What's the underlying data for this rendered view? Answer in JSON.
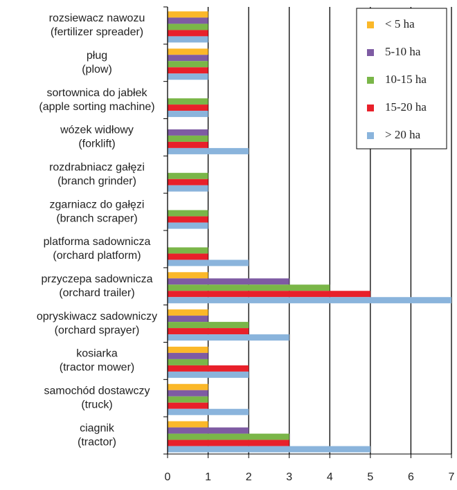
{
  "chart_data": {
    "type": "barh",
    "categories": [
      [
        "rozsiewacz nawozu",
        "(fertilizer spreader)"
      ],
      [
        "pług",
        "(plow)"
      ],
      [
        "sortownica do jabłek",
        "(apple sorting machine)"
      ],
      [
        "wózek widłowy",
        "(forklift)"
      ],
      [
        "rozdrabniacz gałęzi",
        "(branch grinder)"
      ],
      [
        "zgarniacz do gałęzi",
        "(branch scraper)"
      ],
      [
        "platforma sadownicza",
        "(orchard platform)"
      ],
      [
        "przyczepa sadownicza",
        "(orchard trailer)"
      ],
      [
        "opryskiwacz sadowniczy",
        "(orchard sprayer)"
      ],
      [
        "kosiarka",
        "(tractor mower)"
      ],
      [
        "samochód dostawczy",
        "(truck)"
      ],
      [
        "ciagnik",
        "(tractor)"
      ]
    ],
    "series": [
      {
        "name": "< 5 ha",
        "color": "#fbb829",
        "values": [
          1,
          1,
          0,
          0,
          0,
          0,
          0,
          1,
          1,
          1,
          1,
          1
        ]
      },
      {
        "name": "5-10 ha",
        "color": "#7e5ba3",
        "values": [
          1,
          1,
          0,
          1,
          0,
          0,
          0,
          3,
          1,
          1,
          1,
          2
        ]
      },
      {
        "name": "10-15 ha",
        "color": "#7ab648",
        "values": [
          1,
          1,
          1,
          1,
          1,
          1,
          1,
          4,
          2,
          1,
          1,
          3
        ]
      },
      {
        "name": "15-20 ha",
        "color": "#e8202a",
        "values": [
          1,
          1,
          1,
          1,
          1,
          1,
          1,
          5,
          2,
          2,
          1,
          3
        ]
      },
      {
        "name": "> 20 ha",
        "color": "#8ab4dc",
        "values": [
          1,
          1,
          1,
          2,
          1,
          1,
          2,
          7,
          3,
          2,
          2,
          5
        ]
      }
    ],
    "xlim": [
      0,
      7
    ],
    "xticks": [
      0,
      1,
      2,
      3,
      4,
      5,
      6,
      7
    ],
    "grid": true,
    "legend": "top-right"
  }
}
